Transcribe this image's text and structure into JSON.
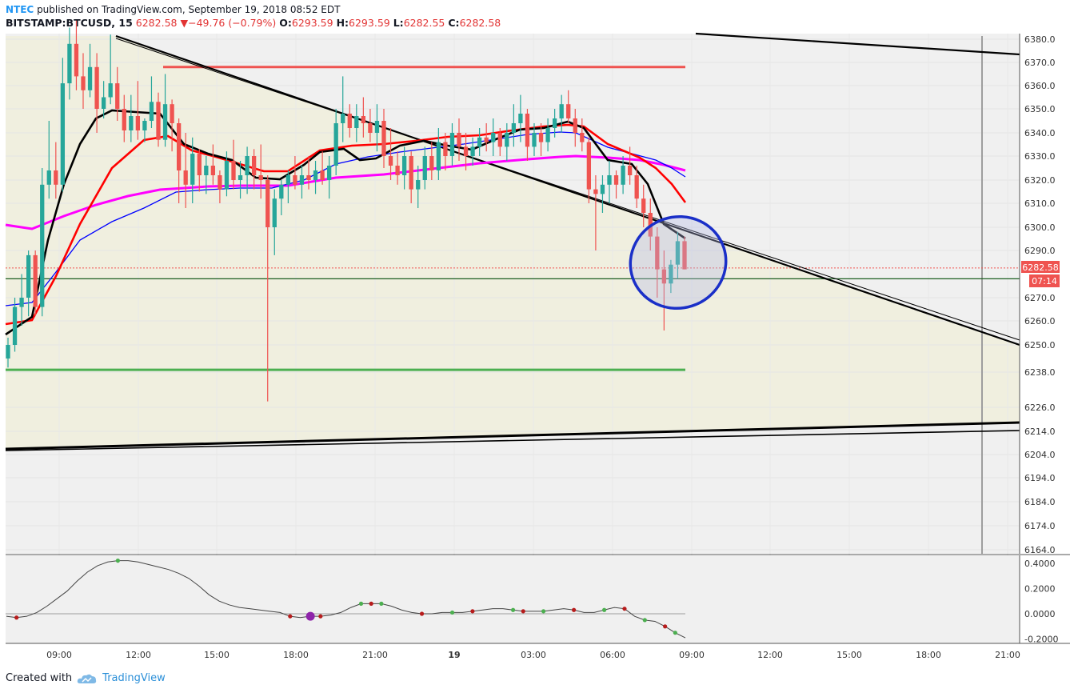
{
  "header": {
    "author": "NTEC",
    "published": "published on TradingView.com, September 19, 2018 08:52 EDT",
    "symbol": "BITSTAMP:BTCUSD, 15",
    "last": "6282.58",
    "change": "−49.76 (−0.79%)",
    "o_label": "O:",
    "o_value": "6293.59",
    "h_label": "H:",
    "h_value": "6293.59",
    "l_label": "L:",
    "l_value": "6282.55",
    "c_label": "C:",
    "c_value": "6282.58",
    "down_arrow": "▼"
  },
  "price_badge": "6282.58",
  "countdown_badge": "07:14",
  "footer": {
    "created": "Created with",
    "brand": "TradingView"
  },
  "colors": {
    "up": "#26a69a",
    "down": "#ef5350",
    "zone": "#f0f0e0",
    "ema_fast": "#000000",
    "ema_mid": "#ff0000",
    "ema_slow": "#0000ff",
    "ema_long": "#ff00ff",
    "resistance": "#ef5350",
    "support": "#4caf50",
    "current_line": "#1b5e20",
    "circle": "#1a2fc8"
  },
  "chart_data": [
    {
      "type": "candlestick",
      "symbol": "BITSTAMP:BTCUSD",
      "interval": "15",
      "x_ticks": [
        "09:00",
        "12:00",
        "15:00",
        "18:00",
        "21:00",
        "19",
        "03:00",
        "06:00",
        "09:00",
        "12:00",
        "15:00",
        "18:00",
        "21:00"
      ],
      "y_ticks": [
        6164,
        6174,
        6184,
        6194,
        6204,
        6214,
        6226,
        6238,
        6250,
        6260,
        6270,
        6290,
        6300,
        6310,
        6320,
        6330,
        6340,
        6350,
        6360,
        6370,
        6380
      ],
      "last_price": 6282.58,
      "horizontal_levels": {
        "resistance": 6368,
        "current": 6278,
        "support": 6239
      },
      "candles": [
        {
          "o": 6244,
          "h": 6253,
          "l": 6240,
          "c": 6250
        },
        {
          "o": 6250,
          "h": 6270,
          "l": 6247,
          "c": 6266
        },
        {
          "o": 6266,
          "h": 6280,
          "l": 6258,
          "c": 6270
        },
        {
          "o": 6270,
          "h": 6290,
          "l": 6262,
          "c": 6288
        },
        {
          "o": 6288,
          "h": 6290,
          "l": 6262,
          "c": 6266
        },
        {
          "o": 6266,
          "h": 6325,
          "l": 6262,
          "c": 6318
        },
        {
          "o": 6318,
          "h": 6345,
          "l": 6312,
          "c": 6324
        },
        {
          "o": 6324,
          "h": 6336,
          "l": 6312,
          "c": 6318
        },
        {
          "o": 6318,
          "h": 6372,
          "l": 6315,
          "c": 6361
        },
        {
          "o": 6361,
          "h": 6385,
          "l": 6354,
          "c": 6378
        },
        {
          "o": 6378,
          "h": 6388,
          "l": 6358,
          "c": 6364
        },
        {
          "o": 6364,
          "h": 6374,
          "l": 6350,
          "c": 6358
        },
        {
          "o": 6358,
          "h": 6378,
          "l": 6355,
          "c": 6368
        },
        {
          "o": 6368,
          "h": 6374,
          "l": 6340,
          "c": 6350
        },
        {
          "o": 6350,
          "h": 6362,
          "l": 6346,
          "c": 6355
        },
        {
          "o": 6355,
          "h": 6382,
          "l": 6352,
          "c": 6361
        },
        {
          "o": 6361,
          "h": 6368,
          "l": 6345,
          "c": 6350
        },
        {
          "o": 6350,
          "h": 6356,
          "l": 6336,
          "c": 6341
        },
        {
          "o": 6341,
          "h": 6356,
          "l": 6336,
          "c": 6347
        },
        {
          "o": 6347,
          "h": 6362,
          "l": 6337,
          "c": 6341
        },
        {
          "o": 6341,
          "h": 6346,
          "l": 6336,
          "c": 6345
        },
        {
          "o": 6345,
          "h": 6364,
          "l": 6342,
          "c": 6353
        },
        {
          "o": 6353,
          "h": 6357,
          "l": 6334,
          "c": 6337
        },
        {
          "o": 6337,
          "h": 6365,
          "l": 6334,
          "c": 6352
        },
        {
          "o": 6352,
          "h": 6354,
          "l": 6332,
          "c": 6344
        },
        {
          "o": 6344,
          "h": 6346,
          "l": 6310,
          "c": 6324
        },
        {
          "o": 6324,
          "h": 6340,
          "l": 6308,
          "c": 6318
        },
        {
          "o": 6318,
          "h": 6338,
          "l": 6310,
          "c": 6331
        },
        {
          "o": 6331,
          "h": 6333,
          "l": 6315,
          "c": 6322
        },
        {
          "o": 6322,
          "h": 6330,
          "l": 6314,
          "c": 6326
        },
        {
          "o": 6326,
          "h": 6335,
          "l": 6318,
          "c": 6322
        },
        {
          "o": 6322,
          "h": 6324,
          "l": 6310,
          "c": 6316
        },
        {
          "o": 6316,
          "h": 6332,
          "l": 6313,
          "c": 6328
        },
        {
          "o": 6328,
          "h": 6337,
          "l": 6316,
          "c": 6320
        },
        {
          "o": 6320,
          "h": 6328,
          "l": 6312,
          "c": 6322
        },
        {
          "o": 6322,
          "h": 6334,
          "l": 6314,
          "c": 6330
        },
        {
          "o": 6330,
          "h": 6333,
          "l": 6316,
          "c": 6322
        },
        {
          "o": 6322,
          "h": 6335,
          "l": 6312,
          "c": 6320
        },
        {
          "o": 6320,
          "h": 6322,
          "l": 6228,
          "c": 6300
        },
        {
          "o": 6300,
          "h": 6316,
          "l": 6288,
          "c": 6312
        },
        {
          "o": 6312,
          "h": 6320,
          "l": 6305,
          "c": 6318
        },
        {
          "o": 6318,
          "h": 6324,
          "l": 6310,
          "c": 6322
        },
        {
          "o": 6322,
          "h": 6330,
          "l": 6316,
          "c": 6318
        },
        {
          "o": 6318,
          "h": 6326,
          "l": 6312,
          "c": 6322
        },
        {
          "o": 6322,
          "h": 6330,
          "l": 6316,
          "c": 6320
        },
        {
          "o": 6320,
          "h": 6328,
          "l": 6314,
          "c": 6324
        },
        {
          "o": 6324,
          "h": 6332,
          "l": 6318,
          "c": 6320
        },
        {
          "o": 6320,
          "h": 6330,
          "l": 6312,
          "c": 6326
        },
        {
          "o": 6326,
          "h": 6350,
          "l": 6322,
          "c": 6344
        },
        {
          "o": 6344,
          "h": 6364,
          "l": 6336,
          "c": 6348
        },
        {
          "o": 6348,
          "h": 6352,
          "l": 6338,
          "c": 6342
        },
        {
          "o": 6342,
          "h": 6352,
          "l": 6336,
          "c": 6347
        },
        {
          "o": 6347,
          "h": 6355,
          "l": 6338,
          "c": 6344
        },
        {
          "o": 6344,
          "h": 6350,
          "l": 6336,
          "c": 6340
        },
        {
          "o": 6340,
          "h": 6352,
          "l": 6332,
          "c": 6345
        },
        {
          "o": 6345,
          "h": 6350,
          "l": 6325,
          "c": 6330
        },
        {
          "o": 6330,
          "h": 6342,
          "l": 6320,
          "c": 6326
        },
        {
          "o": 6326,
          "h": 6332,
          "l": 6318,
          "c": 6322
        },
        {
          "o": 6322,
          "h": 6334,
          "l": 6316,
          "c": 6330
        },
        {
          "o": 6330,
          "h": 6332,
          "l": 6310,
          "c": 6316
        },
        {
          "o": 6316,
          "h": 6326,
          "l": 6308,
          "c": 6320
        },
        {
          "o": 6320,
          "h": 6334,
          "l": 6316,
          "c": 6330
        },
        {
          "o": 6330,
          "h": 6336,
          "l": 6320,
          "c": 6324
        },
        {
          "o": 6324,
          "h": 6342,
          "l": 6320,
          "c": 6336
        },
        {
          "o": 6336,
          "h": 6340,
          "l": 6324,
          "c": 6330
        },
        {
          "o": 6330,
          "h": 6344,
          "l": 6326,
          "c": 6340
        },
        {
          "o": 6340,
          "h": 6346,
          "l": 6328,
          "c": 6334
        },
        {
          "o": 6334,
          "h": 6340,
          "l": 6324,
          "c": 6330
        },
        {
          "o": 6330,
          "h": 6338,
          "l": 6326,
          "c": 6334
        },
        {
          "o": 6334,
          "h": 6342,
          "l": 6330,
          "c": 6338
        },
        {
          "o": 6338,
          "h": 6344,
          "l": 6332,
          "c": 6336
        },
        {
          "o": 6336,
          "h": 6346,
          "l": 6330,
          "c": 6340
        },
        {
          "o": 6340,
          "h": 6342,
          "l": 6330,
          "c": 6334
        },
        {
          "o": 6334,
          "h": 6344,
          "l": 6328,
          "c": 6340
        },
        {
          "o": 6340,
          "h": 6352,
          "l": 6334,
          "c": 6344
        },
        {
          "o": 6344,
          "h": 6356,
          "l": 6336,
          "c": 6348
        },
        {
          "o": 6348,
          "h": 6350,
          "l": 6328,
          "c": 6334
        },
        {
          "o": 6334,
          "h": 6344,
          "l": 6330,
          "c": 6340
        },
        {
          "o": 6340,
          "h": 6344,
          "l": 6330,
          "c": 6336
        },
        {
          "o": 6336,
          "h": 6346,
          "l": 6332,
          "c": 6342
        },
        {
          "o": 6342,
          "h": 6350,
          "l": 6338,
          "c": 6346
        },
        {
          "o": 6346,
          "h": 6356,
          "l": 6340,
          "c": 6352
        },
        {
          "o": 6352,
          "h": 6358,
          "l": 6344,
          "c": 6346
        },
        {
          "o": 6346,
          "h": 6350,
          "l": 6334,
          "c": 6340
        },
        {
          "o": 6340,
          "h": 6346,
          "l": 6332,
          "c": 6336
        },
        {
          "o": 6336,
          "h": 6338,
          "l": 6310,
          "c": 6316
        },
        {
          "o": 6316,
          "h": 6322,
          "l": 6290,
          "c": 6314
        },
        {
          "o": 6314,
          "h": 6322,
          "l": 6306,
          "c": 6318
        },
        {
          "o": 6318,
          "h": 6328,
          "l": 6310,
          "c": 6322
        },
        {
          "o": 6322,
          "h": 6324,
          "l": 6312,
          "c": 6318
        },
        {
          "o": 6318,
          "h": 6330,
          "l": 6314,
          "c": 6326
        },
        {
          "o": 6326,
          "h": 6334,
          "l": 6318,
          "c": 6322
        },
        {
          "o": 6322,
          "h": 6326,
          "l": 6308,
          "c": 6312
        },
        {
          "o": 6312,
          "h": 6318,
          "l": 6300,
          "c": 6306
        },
        {
          "o": 6306,
          "h": 6312,
          "l": 6290,
          "c": 6296
        },
        {
          "o": 6296,
          "h": 6300,
          "l": 6270,
          "c": 6282
        },
        {
          "o": 6282,
          "h": 6290,
          "l": 6256,
          "c": 6276
        },
        {
          "o": 6276,
          "h": 6286,
          "l": 6272,
          "c": 6284
        },
        {
          "o": 6284,
          "h": 6298,
          "l": 6278,
          "c": 6294
        },
        {
          "o": 6294,
          "h": 6296,
          "l": 6282,
          "c": 6282
        }
      ]
    },
    {
      "type": "line",
      "ylim": [
        -0.2,
        0.42
      ],
      "y_ticks": [
        0.4,
        0.2,
        0.0,
        -0.2
      ],
      "y_tick_labels": [
        "0.4000",
        "0.2000",
        "0.0000",
        "-0.2000"
      ],
      "values": [
        -0.02,
        -0.03,
        -0.02,
        0.01,
        0.06,
        0.12,
        0.18,
        0.26,
        0.33,
        0.38,
        0.41,
        0.42,
        0.42,
        0.41,
        0.39,
        0.37,
        0.35,
        0.32,
        0.28,
        0.22,
        0.15,
        0.1,
        0.07,
        0.05,
        0.04,
        0.03,
        0.02,
        0.01,
        -0.02,
        -0.03,
        -0.02,
        -0.02,
        -0.01,
        0.01,
        0.05,
        0.08,
        0.08,
        0.08,
        0.06,
        0.03,
        0.01,
        0.0,
        0.0,
        0.01,
        0.01,
        0.01,
        0.02,
        0.03,
        0.04,
        0.04,
        0.03,
        0.02,
        0.02,
        0.02,
        0.03,
        0.04,
        0.03,
        0.01,
        0.01,
        0.03,
        0.05,
        0.04,
        -0.02,
        -0.05,
        -0.06,
        -0.1,
        -0.15,
        -0.19
      ]
    }
  ]
}
